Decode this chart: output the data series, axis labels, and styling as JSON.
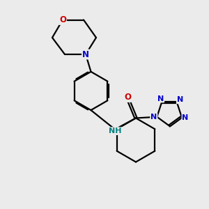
{
  "bg_color": "#ebebeb",
  "bond_color": "#000000",
  "N_color": "#0000cc",
  "O_color": "#cc0000",
  "H_color": "#008080",
  "line_width": 1.6,
  "figsize": [
    3.0,
    3.0
  ],
  "dpi": 100,
  "xlim": [
    0,
    10
  ],
  "ylim": [
    0,
    10
  ]
}
